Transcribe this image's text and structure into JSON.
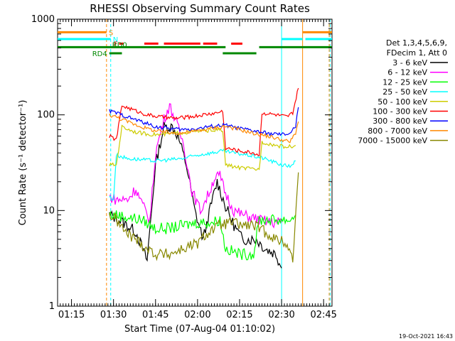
{
  "chart_data": {
    "type": "line",
    "title": "RHESSI Observing Summary Count Rates",
    "xlabel": "Start Time (07-Aug-04 01:10:02)",
    "ylabel": "Count Rate (s⁻¹ detector⁻¹)",
    "yscale": "log",
    "ylim": [
      1,
      1000
    ],
    "xlim": [
      "01:10:02",
      "02:48:00"
    ],
    "x_ticks": [
      "01:15",
      "01:30",
      "01:45",
      "02:00",
      "02:15",
      "02:30",
      "02:45"
    ],
    "y_ticks": [
      "1",
      "10",
      "100",
      "1000"
    ],
    "grid": false,
    "legend_position": "right",
    "legend_header": [
      "Det 1,3,4,5,6,9,",
      "FDecim 1, Att 0"
    ],
    "timestamp": "19-Oct-2021 16:43",
    "series": [
      {
        "name": "3 - 6 keV",
        "color": "#000000",
        "points": [
          [
            "01:28:30",
            9
          ],
          [
            "01:32",
            8
          ],
          [
            "01:38",
            6
          ],
          [
            "01:42",
            3
          ],
          [
            "01:45",
            30
          ],
          [
            "01:48",
            75
          ],
          [
            "01:51",
            75
          ],
          [
            "01:53",
            60
          ],
          [
            "01:56",
            30
          ],
          [
            "01:59",
            10
          ],
          [
            "02:02",
            5
          ],
          [
            "02:05",
            12
          ],
          [
            "02:07",
            20
          ],
          [
            "02:10",
            11
          ],
          [
            "02:13",
            7
          ],
          [
            "02:16",
            5
          ],
          [
            "02:19",
            5
          ],
          [
            "02:21",
            5
          ],
          [
            "02:24",
            4
          ],
          [
            "02:28",
            3.5
          ],
          [
            "02:30",
            2.5
          ]
        ]
      },
      {
        "name": "6 - 12 keV",
        "color": "#ff00ff",
        "points": [
          [
            "01:28:30",
            14
          ],
          [
            "01:31",
            13
          ],
          [
            "01:35",
            13
          ],
          [
            "01:38",
            17
          ],
          [
            "01:40",
            12
          ],
          [
            "01:43",
            8
          ],
          [
            "01:45",
            40
          ],
          [
            "01:48",
            90
          ],
          [
            "01:50",
            125
          ],
          [
            "01:52",
            90
          ],
          [
            "01:55",
            50
          ],
          [
            "01:58",
            16
          ],
          [
            "02:01",
            10
          ],
          [
            "02:04",
            15
          ],
          [
            "02:06",
            22
          ],
          [
            "02:08",
            23
          ],
          [
            "02:10",
            15
          ],
          [
            "02:13",
            10
          ],
          [
            "02:16",
            9
          ],
          [
            "02:19",
            8.5
          ],
          [
            "02:22",
            8
          ],
          [
            "02:26",
            7.5
          ],
          [
            "02:30",
            7.5
          ]
        ]
      },
      {
        "name": "12 - 25 keV",
        "color": "#00ff00",
        "points": [
          [
            "01:28:30",
            9
          ],
          [
            "01:31",
            9
          ],
          [
            "01:35",
            8.5
          ],
          [
            "01:40",
            8
          ],
          [
            "01:45",
            6.5
          ],
          [
            "01:50",
            6.5
          ],
          [
            "01:55",
            7
          ],
          [
            "02:00",
            7.5
          ],
          [
            "02:05",
            7.5
          ],
          [
            "02:08",
            8
          ],
          [
            "02:10",
            4
          ],
          [
            "02:15",
            3.5
          ],
          [
            "02:20",
            3.5
          ],
          [
            "02:22",
            8
          ],
          [
            "02:26",
            8
          ],
          [
            "02:30",
            8
          ],
          [
            "02:33",
            8
          ],
          [
            "02:35",
            9
          ]
        ]
      },
      {
        "name": "25 - 50 keV",
        "color": "#00ffff",
        "points": [
          [
            "01:28:30",
            14
          ],
          [
            "01:30",
            13
          ],
          [
            "01:31",
            38
          ],
          [
            "01:35",
            35
          ],
          [
            "01:40",
            34
          ],
          [
            "01:45",
            33
          ],
          [
            "01:50",
            34
          ],
          [
            "01:55",
            35
          ],
          [
            "02:00",
            38
          ],
          [
            "02:05",
            40
          ],
          [
            "02:09",
            42
          ],
          [
            "02:13",
            40
          ],
          [
            "02:18",
            38
          ],
          [
            "02:22",
            36
          ],
          [
            "02:22:30",
            36
          ],
          [
            "02:25",
            34
          ],
          [
            "02:30",
            30
          ],
          [
            "02:33",
            29
          ],
          [
            "02:35",
            33
          ]
        ]
      },
      {
        "name": "50 - 100 keV",
        "color": "#cccc00",
        "points": [
          [
            "01:28:30",
            30
          ],
          [
            "01:31",
            30
          ],
          [
            "01:33",
            75
          ],
          [
            "01:38",
            66
          ],
          [
            "01:42",
            63
          ],
          [
            "01:47",
            62
          ],
          [
            "01:52",
            64
          ],
          [
            "01:57",
            66
          ],
          [
            "02:02",
            68
          ],
          [
            "02:07",
            70
          ],
          [
            "02:09",
            68
          ],
          [
            "02:10",
            30
          ],
          [
            "02:15",
            28
          ],
          [
            "02:20",
            27
          ],
          [
            "02:22",
            27
          ],
          [
            "02:23",
            52
          ],
          [
            "02:28",
            48
          ],
          [
            "02:32",
            46
          ],
          [
            "02:35",
            48
          ]
        ]
      },
      {
        "name": "100 - 300 keV",
        "color": "#ff0000",
        "points": [
          [
            "01:28:30",
            60
          ],
          [
            "01:31",
            55
          ],
          [
            "01:33",
            125
          ],
          [
            "01:38",
            110
          ],
          [
            "01:42",
            100
          ],
          [
            "01:47",
            95
          ],
          [
            "01:52",
            92
          ],
          [
            "01:57",
            95
          ],
          [
            "02:02",
            100
          ],
          [
            "02:07",
            105
          ],
          [
            "02:09",
            110
          ],
          [
            "02:10",
            45
          ],
          [
            "02:15",
            42
          ],
          [
            "02:20",
            40
          ],
          [
            "02:22",
            38
          ],
          [
            "02:23",
            105
          ],
          [
            "02:28",
            100
          ],
          [
            "02:32",
            95
          ],
          [
            "02:34",
            105
          ],
          [
            "02:36",
            190
          ]
        ]
      },
      {
        "name": "300 - 800 keV",
        "color": "#0000ff",
        "points": [
          [
            "01:28:30",
            110
          ],
          [
            "01:31",
            105
          ],
          [
            "01:35",
            95
          ],
          [
            "01:40",
            85
          ],
          [
            "01:45",
            75
          ],
          [
            "01:50",
            72
          ],
          [
            "01:55",
            70
          ],
          [
            "02:00",
            72
          ],
          [
            "02:05",
            76
          ],
          [
            "02:10",
            78
          ],
          [
            "02:15",
            72
          ],
          [
            "02:20",
            68
          ],
          [
            "02:25",
            64
          ],
          [
            "02:30",
            62
          ],
          [
            "02:33",
            64
          ],
          [
            "02:35",
            75
          ],
          [
            "02:36",
            120
          ]
        ]
      },
      {
        "name": "800 - 7000 keV",
        "color": "#ff8800",
        "points": [
          [
            "01:28:30",
            100
          ],
          [
            "01:31",
            95
          ],
          [
            "01:35",
            85
          ],
          [
            "01:40",
            75
          ],
          [
            "01:45",
            68
          ],
          [
            "01:50",
            65
          ],
          [
            "01:55",
            65
          ],
          [
            "02:00",
            68
          ],
          [
            "02:05",
            72
          ],
          [
            "02:10",
            76
          ],
          [
            "02:15",
            70
          ],
          [
            "02:20",
            64
          ],
          [
            "02:25",
            60
          ],
          [
            "02:30",
            55
          ],
          [
            "02:33",
            52
          ],
          [
            "02:35",
            65
          ],
          [
            "02:36",
            85
          ]
        ]
      },
      {
        "name": "7000 - 15000 keV",
        "color": "#888800",
        "points": [
          [
            "01:28:30",
            9
          ],
          [
            "01:31",
            8
          ],
          [
            "01:34",
            6
          ],
          [
            "01:38",
            5
          ],
          [
            "01:42",
            4
          ],
          [
            "01:45",
            3.5
          ],
          [
            "01:50",
            3.5
          ],
          [
            "01:55",
            4
          ],
          [
            "02:00",
            4.5
          ],
          [
            "02:04",
            6
          ],
          [
            "02:08",
            7
          ],
          [
            "02:12",
            7.5
          ],
          [
            "02:16",
            7
          ],
          [
            "02:20",
            7
          ],
          [
            "02:24",
            6
          ],
          [
            "02:28",
            5
          ],
          [
            "02:32",
            4.5
          ],
          [
            "02:34",
            3
          ],
          [
            "02:36",
            25
          ]
        ]
      }
    ],
    "flag_bars": [
      {
        "label": "S",
        "color": "#ff8800",
        "y": 730,
        "segments": [
          [
            "01:10:02",
            "01:27:30"
          ],
          [
            "02:37:30",
            "02:48:00"
          ]
        ]
      },
      {
        "label": "N",
        "color": "#00ffff",
        "y": 620,
        "segments": [
          [
            "01:10:02",
            "01:29"
          ],
          [
            "02:30",
            "02:37:30"
          ],
          [
            "02:38:30",
            "02:48:00"
          ]
        ]
      },
      {
        "label": "F",
        "color": "#ff0000",
        "y": 555,
        "segments": [
          [
            "01:32",
            "01:33:30"
          ],
          [
            "01:41",
            "01:46"
          ],
          [
            "01:48",
            "02:01"
          ],
          [
            "02:02",
            "02:07"
          ],
          [
            "02:12",
            "02:16"
          ]
        ]
      },
      {
        "label": "RD0",
        "color": "#008800",
        "y": 510,
        "segments": [
          [
            "01:10:02",
            "02:10"
          ],
          [
            "02:22",
            "02:48:00"
          ]
        ]
      },
      {
        "label": "RD4",
        "color": "#008800",
        "y": 440,
        "segments": [
          [
            "01:28:30",
            "01:33"
          ],
          [
            "02:09",
            "02:21"
          ]
        ]
      }
    ],
    "vertical_lines": [
      {
        "color": "#ff8800",
        "style": "dashed",
        "x": "01:27:30"
      },
      {
        "color": "#00ffff",
        "style": "dashed",
        "x": "01:29"
      },
      {
        "color": "#00ffff",
        "style": "solid",
        "x": "02:30"
      },
      {
        "color": "#ff8800",
        "style": "solid",
        "x": "02:37:30"
      },
      {
        "color": "#ff8800",
        "style": "dashed",
        "x": "02:47"
      },
      {
        "color": "#00ffff",
        "style": "dashed",
        "x": "02:47:20"
      }
    ]
  }
}
